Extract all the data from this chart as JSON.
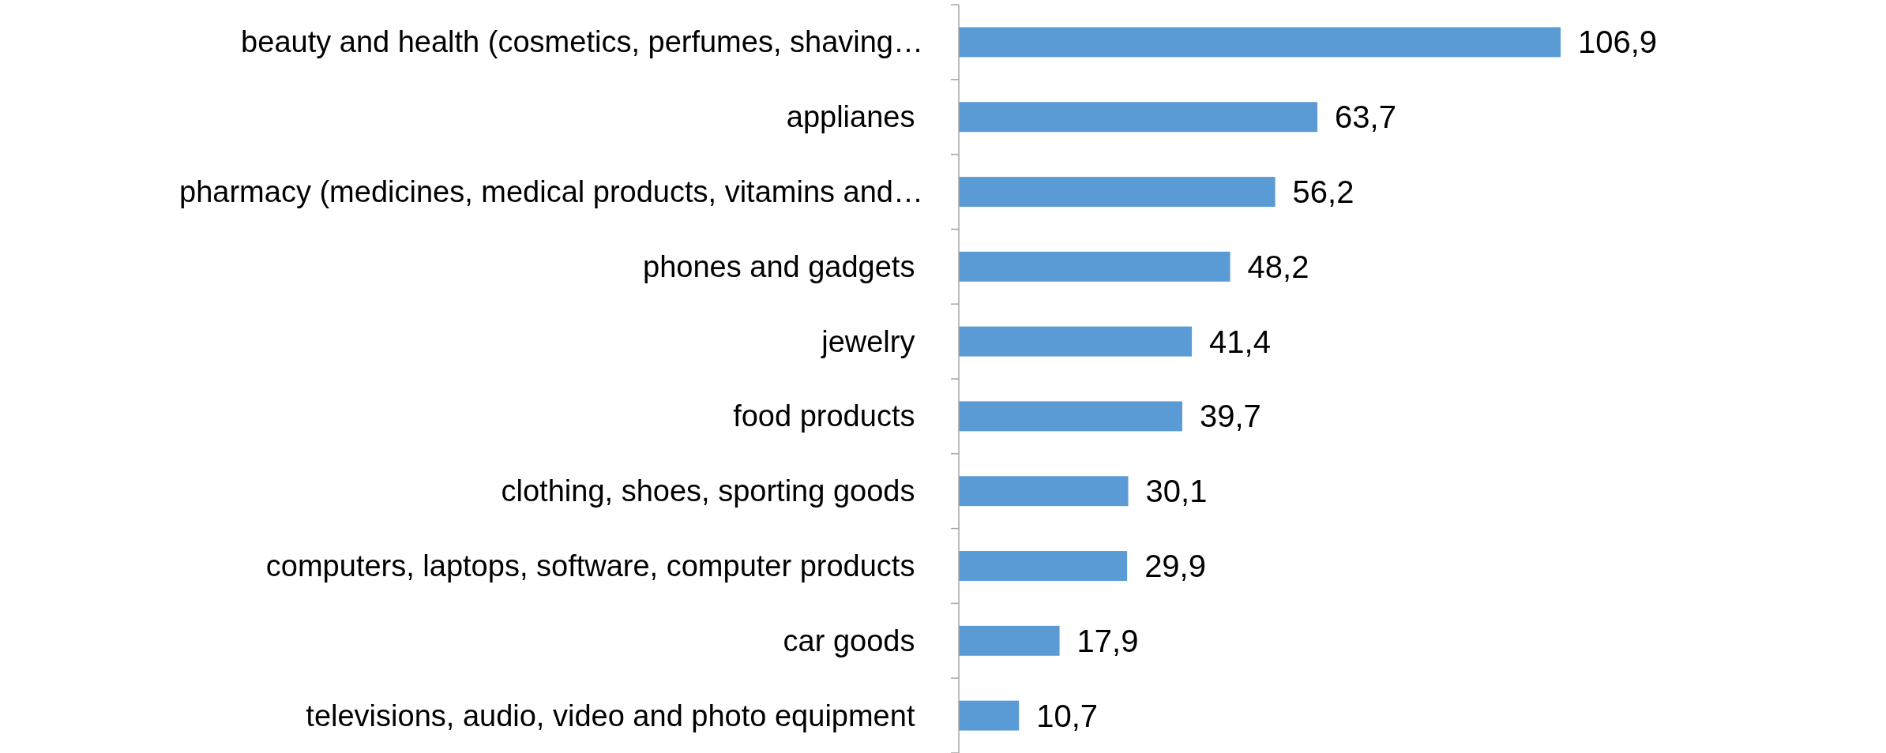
{
  "chart_data": {
    "type": "bar",
    "orientation": "horizontal",
    "categories": [
      "beauty and health (cosmetics, perfumes, shaving…",
      "applianes ",
      "pharmacy (medicines, medical products, vitamins and…",
      "phones and gadgets ",
      "jewelry ",
      "food products ",
      "clothing, shoes, sporting goods ",
      "computers, laptops, software, computer products ",
      "car goods ",
      "televisions, audio, video and photo equipment "
    ],
    "values": [
      106.9,
      63.7,
      56.2,
      48.2,
      41.4,
      39.7,
      30.1,
      29.9,
      17.9,
      10.7
    ],
    "value_labels": [
      "106,9",
      "63,7",
      "56,2",
      "48,2",
      "41,4",
      "39,7",
      "30,1",
      "29,9",
      "17,9",
      "10,7"
    ],
    "color": "#5b9bd5"
  }
}
